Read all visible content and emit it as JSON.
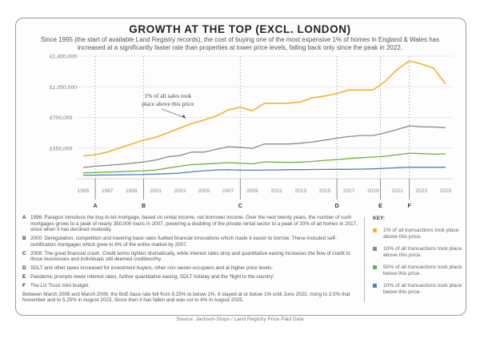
{
  "title": "GROWTH AT THE TOP (EXCL. LONDON)",
  "subtitle": "Since 1995 (the start of available Land Registry records), the cost of buying one of the most expensive 1% of homes in England & Wales has increased at a significantly faster rate than properties at lower price levels, falling back only since the peak in 2022.",
  "chart_data": {
    "type": "line",
    "ylim": [
      0,
      1400000
    ],
    "y_ticks": [
      {
        "value": 1400000,
        "label": "£1,400,000"
      },
      {
        "value": 1050000,
        "label": "£1,050,000"
      },
      {
        "value": 700000,
        "label": "£700,000"
      },
      {
        "value": 350000,
        "label": "£350,000"
      }
    ],
    "x_ticks": [
      "1995",
      "1997",
      "1999",
      "2001",
      "2003",
      "2005",
      "2007",
      "2009",
      "2011",
      "2013",
      "2015",
      "2017",
      "2019",
      "2021",
      "2023",
      "2025"
    ],
    "grid": "horizontal",
    "x": [
      1995,
      1996,
      1997,
      1998,
      1999,
      2000,
      2001,
      2002,
      2003,
      2004,
      2005,
      2006,
      2007,
      2008,
      2009,
      2010,
      2011,
      2012,
      2013,
      2014,
      2015,
      2016,
      2017,
      2018,
      2019,
      2020,
      2021,
      2022,
      2023,
      2024,
      2025
    ],
    "series": [
      {
        "name": "1% of all transactions took place above this price.",
        "color": "#f0b429",
        "values": [
          259000,
          274000,
          304000,
          350000,
          396000,
          441000,
          472000,
          523000,
          578000,
          630000,
          670000,
          715000,
          785000,
          816000,
          776000,
          861000,
          861000,
          862000,
          877000,
          925000,
          943000,
          974000,
          1013000,
          1013000,
          1013000,
          1111000,
          1248000,
          1345000,
          1309000,
          1263000,
          1080000
        ]
      },
      {
        "name": "10% of all transactions took place above this price.",
        "color": "#8a8a8a",
        "values": [
          128000,
          143000,
          152000,
          164000,
          176000,
          192000,
          213000,
          250000,
          265000,
          304000,
          304000,
          335000,
          365000,
          359000,
          347000,
          396000,
          396000,
          396000,
          405000,
          420000,
          441000,
          463000,
          481000,
          493000,
          493000,
          523000,
          563000,
          603000,
          593000,
          590000,
          584000
        ]
      },
      {
        "name": "50% of all transactions took place below this price.",
        "color": "#6db33f",
        "values": [
          67000,
          70000,
          76000,
          80000,
          85000,
          91000,
          100000,
          122000,
          143000,
          161000,
          167000,
          176000,
          183000,
          177000,
          170000,
          192000,
          189000,
          186000,
          189000,
          198000,
          210000,
          219000,
          231000,
          240000,
          247000,
          256000,
          274000,
          292000,
          286000,
          280000,
          283000
        ]
      },
      {
        "name": "10% of all transactions took place below this price.",
        "color": "#4f81bd",
        "values": [
          40000,
          41000,
          42000,
          44000,
          46000,
          49000,
          52000,
          58000,
          64000,
          79000,
          91000,
          100000,
          103000,
          97000,
          97000,
          100000,
          100000,
          103000,
          103000,
          105000,
          106000,
          107000,
          107000,
          110000,
          113000,
          119000,
          125000,
          131000,
          131000,
          131000,
          131000
        ]
      }
    ],
    "markers": [
      {
        "label": "A",
        "x": 1996
      },
      {
        "label": "B",
        "x": 2000
      },
      {
        "label": "C",
        "x": 2008
      },
      {
        "label": "D",
        "x": 2016
      },
      {
        "label": "E",
        "x": 2019.6
      },
      {
        "label": "F",
        "x": 2022
      }
    ],
    "annotation": {
      "text": "1% of all sales took place above this price",
      "x": 2004,
      "y": 630000
    }
  },
  "notes": [
    {
      "letter": "A",
      "text": "1996: Paragon introduce the buy-to-let mortgage, based on rental income, not borrower income. Over the next twenty years, the number of such mortgages grows to a peak of nearly 350,000 loans in 2007, powering a doubling of the private rental sector to a peak of 20% of all homes in 2017, since when it has declined modestly."
    },
    {
      "letter": "B",
      "text": "2000: Deregulation, competition and lowering base rates fuelled financial innovations which made it easier to borrow. These included self-certification mortgages which grew to 6% of the entire market by 2007."
    },
    {
      "letter": "C",
      "text": "2008: The great financial crash. Credit terms tighten dramatically, while interest rates drop and quantitative easing increases the flow of credit to those businesses and individuals still deemed creditworthy."
    },
    {
      "letter": "D",
      "text": "SDLT and other taxes increased for investment buyers, other non owner-occupiers and at higher price levels."
    },
    {
      "letter": "E",
      "text": "Pandemic prompts lower interest rates, further quantitative easing, SDLT holiday and the 'flight to the country'."
    },
    {
      "letter": "F",
      "text": "The Liz Truss mini budget."
    }
  ],
  "footnote": "Between March 2008 and March 2009, the BoE base rate fell from 5.25% to below 1%. It stayed at or below 1% until June 2022, rising to 3.5% that November and to 5.25% in August 2023. Since then it has fallen and was cut to 4% in August 2025.",
  "key": {
    "title": "KEY:"
  },
  "source": "Source: Jackson-Stops / Land Registry Price Paid Data"
}
